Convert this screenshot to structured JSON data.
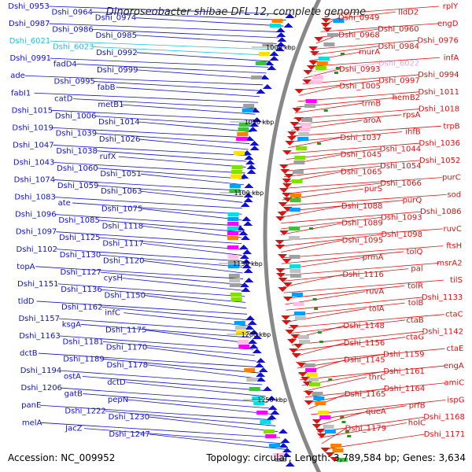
{
  "title": "Dinoroseobacter shibae DFL 12, complete genome",
  "footer": {
    "accession": "Accession: NC_009952",
    "summary": "Topology: circular; Length: 3,789,584 bp; Genes: 3,634"
  },
  "colors": {
    "forward": "#1010d0",
    "reverse": "#e01010",
    "rna_forward": "#20c0e0",
    "rna_reverse": "#f0a0e0",
    "backbone": "#888888",
    "tick_marker": "#10a010"
  },
  "scale_ticks": [
    "1000 kbp",
    "1050 kbp",
    "1100 kbp",
    "1150 kbp",
    "1200 kbp",
    "1250 kbp"
  ],
  "left_labels": [
    {
      "text": "Dshi_0953",
      "type": "fwd"
    },
    {
      "text": "Dshi_0964",
      "type": "fwd"
    },
    {
      "text": "Dshi_0974",
      "type": "fwd"
    },
    {
      "text": "Dshi_0987",
      "type": "fwd"
    },
    {
      "text": "Dshi_0986",
      "type": "fwd"
    },
    {
      "text": "Dshi_0985",
      "type": "fwd"
    },
    {
      "text": "Dshi_6021",
      "type": "rna"
    },
    {
      "text": "Dshi_6023",
      "type": "rna"
    },
    {
      "text": "Dshi_0992",
      "type": "fwd"
    },
    {
      "text": "Dshi_0991",
      "type": "fwd"
    },
    {
      "text": "fadD4",
      "type": "fwd"
    },
    {
      "text": "Dshi_0999",
      "type": "fwd"
    },
    {
      "text": "ade",
      "type": "fwd"
    },
    {
      "text": "Dshi_0995",
      "type": "fwd"
    },
    {
      "text": "fabB",
      "type": "fwd"
    },
    {
      "text": "fabI1",
      "type": "fwd"
    },
    {
      "text": "catD",
      "type": "fwd"
    },
    {
      "text": "metB1",
      "type": "fwd"
    },
    {
      "text": "Dshi_1015",
      "type": "fwd"
    },
    {
      "text": "Dshi_1006",
      "type": "fwd"
    },
    {
      "text": "Dshi_1014",
      "type": "fwd"
    },
    {
      "text": "Dshi_1019",
      "type": "fwd"
    },
    {
      "text": "Dshi_1039",
      "type": "fwd"
    },
    {
      "text": "Dshi_1026",
      "type": "fwd"
    },
    {
      "text": "Dshi_1047",
      "type": "fwd"
    },
    {
      "text": "Dshi_1038",
      "type": "fwd"
    },
    {
      "text": "rufX",
      "type": "fwd"
    },
    {
      "text": "Dshi_1043",
      "type": "fwd"
    },
    {
      "text": "Dshi_1060",
      "type": "fwd"
    },
    {
      "text": "Dshi_1051",
      "type": "fwd"
    },
    {
      "text": "Dshi_1074",
      "type": "fwd"
    },
    {
      "text": "Dshi_1059",
      "type": "fwd"
    },
    {
      "text": "Dshi_1063",
      "type": "fwd"
    },
    {
      "text": "Dshi_1083",
      "type": "fwd"
    },
    {
      "text": "ate",
      "type": "fwd"
    },
    {
      "text": "Dshi_1075",
      "type": "fwd"
    },
    {
      "text": "Dshi_1096",
      "type": "fwd"
    },
    {
      "text": "Dshi_1085",
      "type": "fwd"
    },
    {
      "text": "Dshi_1118",
      "type": "fwd"
    },
    {
      "text": "Dshi_1097",
      "type": "fwd"
    },
    {
      "text": "Dshi_1125",
      "type": "fwd"
    },
    {
      "text": "Dshi_1117",
      "type": "fwd"
    },
    {
      "text": "Dshi_1102",
      "type": "fwd"
    },
    {
      "text": "Dshi_1130",
      "type": "fwd"
    },
    {
      "text": "Dshi_1120",
      "type": "fwd"
    },
    {
      "text": "topA",
      "type": "fwd"
    },
    {
      "text": "Dshi_1127",
      "type": "fwd"
    },
    {
      "text": "cysH",
      "type": "fwd"
    },
    {
      "text": "Dshi_1151",
      "type": "fwd"
    },
    {
      "text": "Dshi_1136",
      "type": "fwd"
    },
    {
      "text": "Dshi_1150",
      "type": "fwd"
    },
    {
      "text": "tldD",
      "type": "fwd"
    },
    {
      "text": "Dshi_1162",
      "type": "fwd"
    },
    {
      "text": "infC",
      "type": "fwd"
    },
    {
      "text": "Dshi_1157",
      "type": "fwd"
    },
    {
      "text": "ksgA",
      "type": "fwd"
    },
    {
      "text": "Dshi_1175",
      "type": "fwd"
    },
    {
      "text": "Dshi_1163",
      "type": "fwd"
    },
    {
      "text": "Dshi_1181",
      "type": "fwd"
    },
    {
      "text": "Dshi_1170",
      "type": "fwd"
    },
    {
      "text": "dctB",
      "type": "fwd"
    },
    {
      "text": "Dshi_1189",
      "type": "fwd"
    },
    {
      "text": "Dshi_1178",
      "type": "fwd"
    },
    {
      "text": "Dshi_1194",
      "type": "fwd"
    },
    {
      "text": "ostA",
      "type": "fwd"
    },
    {
      "text": "dctD",
      "type": "fwd"
    },
    {
      "text": "Dshi_1206",
      "type": "fwd"
    },
    {
      "text": "gatB",
      "type": "fwd"
    },
    {
      "text": "pepN",
      "type": "fwd"
    },
    {
      "text": "panE",
      "type": "fwd"
    },
    {
      "text": "Dshi_1222",
      "type": "fwd"
    },
    {
      "text": "Dshi_1230",
      "type": "fwd"
    },
    {
      "text": "melA",
      "type": "fwd"
    },
    {
      "text": "JacZ",
      "type": "fwd"
    },
    {
      "text": "Dshi_1247",
      "type": "fwd"
    }
  ],
  "right_labels": [
    {
      "text": "rplY",
      "type": "rev"
    },
    {
      "text": "lldD2",
      "type": "rev"
    },
    {
      "text": "Dshi_0949",
      "type": "rev"
    },
    {
      "text": "engD",
      "type": "rev"
    },
    {
      "text": "Dshi_0960",
      "type": "rev"
    },
    {
      "text": "Dshi_0968",
      "type": "rev"
    },
    {
      "text": "Dshi_0976",
      "type": "rev"
    },
    {
      "text": "Dshi_0984",
      "type": "rev"
    },
    {
      "text": "murA",
      "type": "rev"
    },
    {
      "text": "infA",
      "type": "rev"
    },
    {
      "text": "Dshi_6022",
      "type": "rna"
    },
    {
      "text": "Dshi_0993",
      "type": "rev"
    },
    {
      "text": "Dshi_0994",
      "type": "rev"
    },
    {
      "text": "Dshi_0997",
      "type": "rev"
    },
    {
      "text": "Dshi_1005",
      "type": "rev"
    },
    {
      "text": "Dshi_1011",
      "type": "rev"
    },
    {
      "text": "hemB2",
      "type": "rev"
    },
    {
      "text": "trmB",
      "type": "rev"
    },
    {
      "text": "Dshi_1018",
      "type": "rev"
    },
    {
      "text": "rpsA",
      "type": "rev"
    },
    {
      "text": "aroA",
      "type": "rev"
    },
    {
      "text": "trpB",
      "type": "rev"
    },
    {
      "text": "ihfB",
      "type": "rev"
    },
    {
      "text": "Dshi_1037",
      "type": "rev"
    },
    {
      "text": "Dshi_1036",
      "type": "rev"
    },
    {
      "text": "Dshi_1044",
      "type": "rev"
    },
    {
      "text": "Dshi_1045",
      "type": "rev"
    },
    {
      "text": "Dshi_1052",
      "type": "rev"
    },
    {
      "text": "Dshi_1054",
      "type": "rev"
    },
    {
      "text": "Dshi_1065",
      "type": "rev"
    },
    {
      "text": "purC",
      "type": "rev"
    },
    {
      "text": "Dshi_1066",
      "type": "rev"
    },
    {
      "text": "purS",
      "type": "rev"
    },
    {
      "text": "sod",
      "type": "rev"
    },
    {
      "text": "purQ",
      "type": "rev"
    },
    {
      "text": "Dshi_1088",
      "type": "rev"
    },
    {
      "text": "Dshi_1086",
      "type": "rev"
    },
    {
      "text": "Dshi_1093",
      "type": "rev"
    },
    {
      "text": "Dshi_1089",
      "type": "rev"
    },
    {
      "text": "ruvC",
      "type": "rev"
    },
    {
      "text": "Dshi_1098",
      "type": "rev"
    },
    {
      "text": "Dshi_1095",
      "type": "rev"
    },
    {
      "text": "ftsH",
      "type": "rev"
    },
    {
      "text": "tolQ",
      "type": "rev"
    },
    {
      "text": "prmA",
      "type": "rev"
    },
    {
      "text": "msrA2",
      "type": "rev"
    },
    {
      "text": "pal",
      "type": "rev"
    },
    {
      "text": "Dshi_1116",
      "type": "rev"
    },
    {
      "text": "tilS",
      "type": "rev"
    },
    {
      "text": "tolR",
      "type": "rev"
    },
    {
      "text": "ruvA",
      "type": "rev"
    },
    {
      "text": "Dshi_1133",
      "type": "rev"
    },
    {
      "text": "tolB",
      "type": "rev"
    },
    {
      "text": "tolA",
      "type": "rev"
    },
    {
      "text": "ctaC",
      "type": "rev"
    },
    {
      "text": "ctaB",
      "type": "rev"
    },
    {
      "text": "Dshi_1148",
      "type": "rev"
    },
    {
      "text": "Dshi_1142",
      "type": "rev"
    },
    {
      "text": "ctaG",
      "type": "rev"
    },
    {
      "text": "Dshi_1156",
      "type": "rev"
    },
    {
      "text": "ctaE",
      "type": "rev"
    },
    {
      "text": "Dshi_1159",
      "type": "rev"
    },
    {
      "text": "Dshi_1145",
      "type": "rev"
    },
    {
      "text": "engA",
      "type": "rev"
    },
    {
      "text": "Dshi_1161",
      "type": "rev"
    },
    {
      "text": "thrC",
      "type": "rev"
    },
    {
      "text": "amiC",
      "type": "rev"
    },
    {
      "text": "Dshi_1164",
      "type": "rev"
    },
    {
      "text": "Dshi_1165",
      "type": "rev"
    },
    {
      "text": "ispG",
      "type": "rev"
    },
    {
      "text": "prfB",
      "type": "rev"
    },
    {
      "text": "queA",
      "type": "rev"
    },
    {
      "text": "Dshi_1168",
      "type": "rev"
    },
    {
      "text": "holC",
      "type": "rev"
    },
    {
      "text": "Dshi_1179",
      "type": "rev"
    },
    {
      "text": "Dshi_1171",
      "type": "rev"
    }
  ]
}
